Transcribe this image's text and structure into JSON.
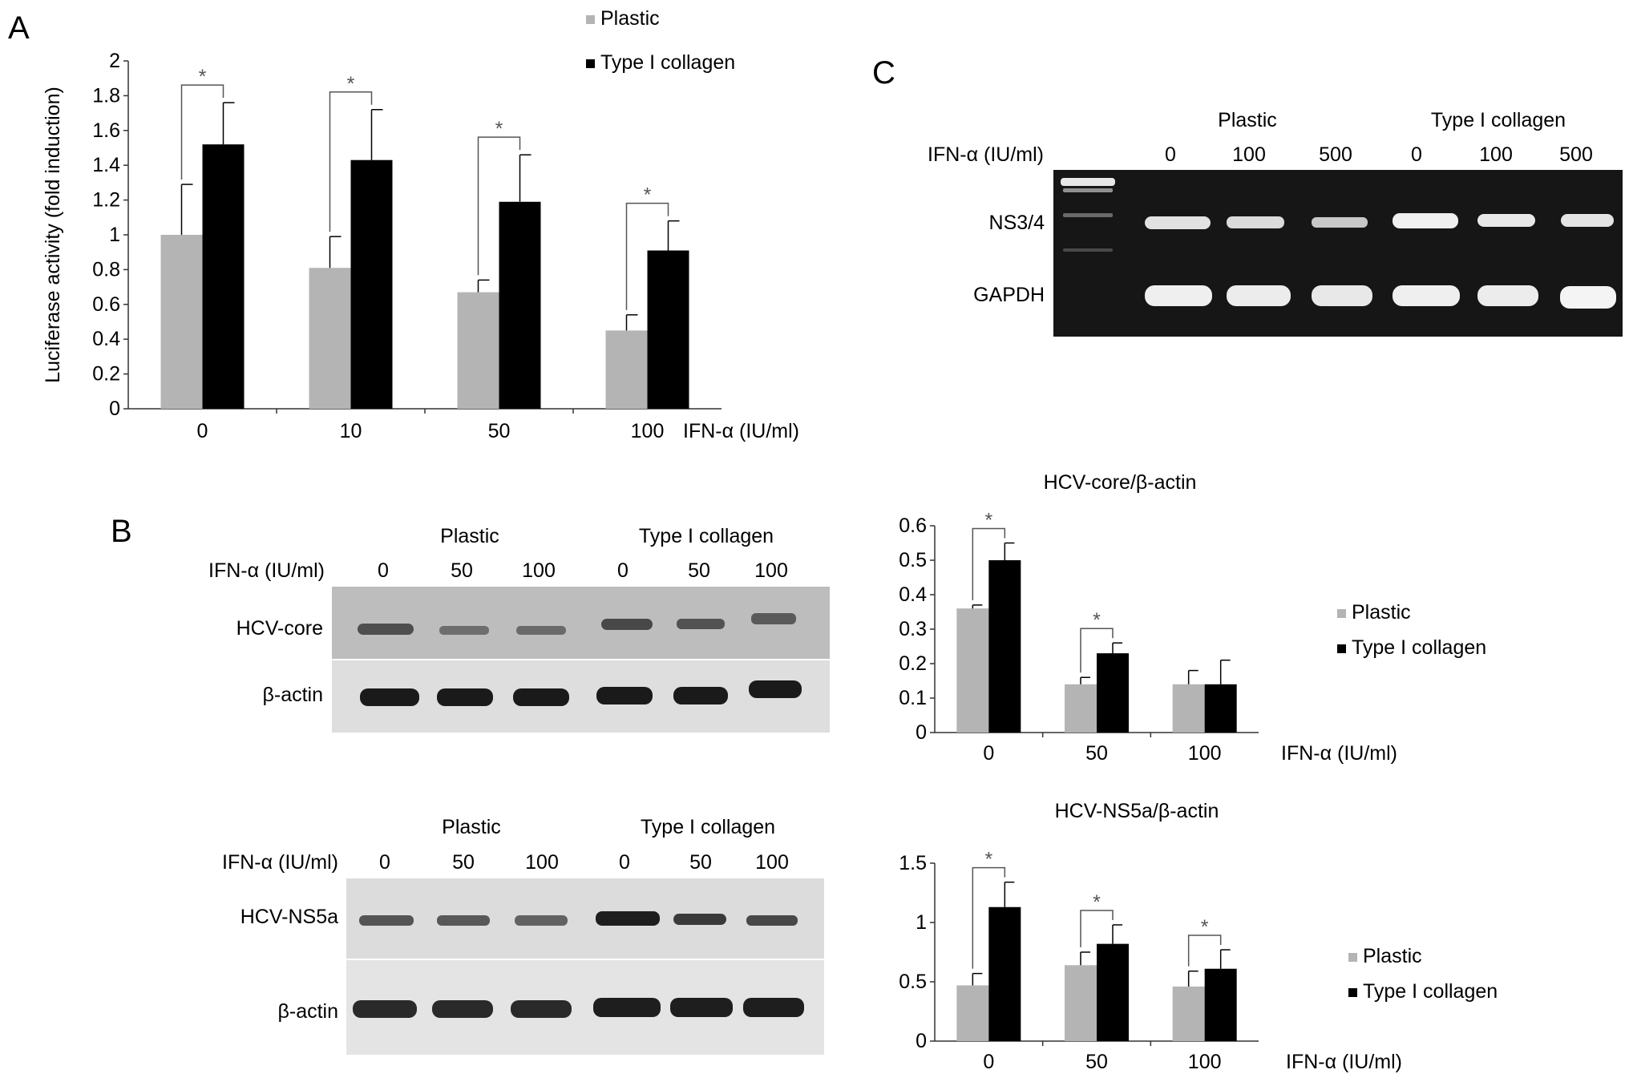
{
  "panels": {
    "a": {
      "letter": "A"
    },
    "b": {
      "letter": "B"
    },
    "c": {
      "letter": "C"
    }
  },
  "colors": {
    "plastic": "#b4b4b4",
    "collagen": "#000000"
  },
  "gel_c": {
    "group_labels": [
      "Plastic",
      "Type I collagen"
    ],
    "row_header": "IFN-α (IU/ml)",
    "lane_labels": [
      "0",
      "100",
      "500",
      "0",
      "100",
      "500"
    ],
    "band_labels": [
      "NS3/4",
      "GAPDH"
    ]
  },
  "blot_core": {
    "group_labels": [
      "Plastic",
      "Type I collagen"
    ],
    "row_header": "IFN-α (IU/ml)",
    "lane_labels": [
      "0",
      "50",
      "100",
      "0",
      "50",
      "100"
    ],
    "band_labels": [
      "HCV-core",
      "β-actin"
    ]
  },
  "blot_ns5a": {
    "group_labels": [
      "Plastic",
      "Type I collagen"
    ],
    "row_header": "IFN-α (IU/ml)",
    "lane_labels": [
      "0",
      "50",
      "100",
      "0",
      "50",
      "100"
    ],
    "band_labels": [
      "HCV-NS5a",
      "β-actin"
    ]
  },
  "chart_data": [
    {
      "type": "bar",
      "title": "",
      "ylabel": "Luciferase activity (fold induction)",
      "xlabel": "IFN-α (IU/ml)",
      "categories": [
        "0",
        "10",
        "50",
        "100"
      ],
      "ylim": [
        0,
        2
      ],
      "yticks": [
        "0",
        "0.2",
        "0.4",
        "0.6",
        "0.8",
        "1",
        "1.2",
        "1.4",
        "1.6",
        "1.8",
        "2"
      ],
      "grid": false,
      "legend_position": "top",
      "series": [
        {
          "name": "Plastic",
          "values": [
            1.0,
            0.81,
            0.67,
            0.45
          ],
          "errors": [
            0.29,
            0.18,
            0.07,
            0.09
          ]
        },
        {
          "name": "Type I collagen",
          "values": [
            1.52,
            1.43,
            1.19,
            0.91
          ],
          "errors": [
            0.24,
            0.29,
            0.27,
            0.17
          ]
        }
      ],
      "significance": [
        "*",
        "*",
        "*",
        "*"
      ]
    },
    {
      "type": "bar",
      "title": "HCV-core/β-actin",
      "ylabel": "",
      "xlabel": "IFN-α (IU/ml)",
      "categories": [
        "0",
        "50",
        "100"
      ],
      "ylim": [
        0,
        0.6
      ],
      "yticks": [
        "0",
        "0.1",
        "0.2",
        "0.3",
        "0.4",
        "0.5",
        "0.6"
      ],
      "grid": false,
      "legend_position": "right",
      "series": [
        {
          "name": "Plastic",
          "values": [
            0.36,
            0.14,
            0.14
          ],
          "errors": [
            0.01,
            0.02,
            0.04
          ]
        },
        {
          "name": "Type I collagen",
          "values": [
            0.5,
            0.23,
            0.14
          ],
          "errors": [
            0.05,
            0.03,
            0.07
          ]
        }
      ],
      "significance": [
        "*",
        "*",
        ""
      ]
    },
    {
      "type": "bar",
      "title": "HCV-NS5a/β-actin",
      "ylabel": "",
      "xlabel": "IFN-α (IU/ml)",
      "categories": [
        "0",
        "50",
        "100"
      ],
      "ylim": [
        0,
        1.5
      ],
      "yticks": [
        "0",
        "0.5",
        "1",
        "1.5"
      ],
      "grid": false,
      "legend_position": "right",
      "series": [
        {
          "name": "Plastic",
          "values": [
            0.47,
            0.64,
            0.46
          ],
          "errors": [
            0.1,
            0.11,
            0.13
          ]
        },
        {
          "name": "Type I collagen",
          "values": [
            1.13,
            0.82,
            0.61
          ],
          "errors": [
            0.21,
            0.16,
            0.16
          ]
        }
      ],
      "significance": [
        "*",
        "*",
        "*"
      ]
    }
  ]
}
